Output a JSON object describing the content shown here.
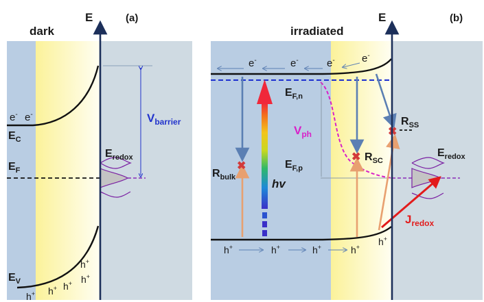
{
  "panel_a": {
    "title": "dark",
    "tag": "(a)",
    "axis_label": "E",
    "electrons": [
      "e",
      "e"
    ],
    "electron_sup": "-",
    "ec_main": "E",
    "ec_sub": "C",
    "ef_main": "E",
    "ef_sub": "F",
    "ev_main": "E",
    "ev_sub": "V",
    "holes": [
      "h",
      "h",
      "h",
      "h",
      "h"
    ],
    "hole_sup": "+",
    "vbarrier_main": "V",
    "vbarrier_sub": "barrier",
    "eredox_main": "E",
    "eredox_sub": "redox"
  },
  "panel_b": {
    "title": "irradiated",
    "tag": "(b)",
    "axis_label": "E",
    "electrons": [
      "e",
      "e",
      "e",
      "e"
    ],
    "electron_sup": "-",
    "efn_main": "E",
    "efn_sub": "F,n",
    "efp_main": "E",
    "efp_sub": "F,p",
    "vph_main": "V",
    "vph_sub": "ph",
    "hv": "hv",
    "rbulk_main": "R",
    "rbulk_sub": "bulk",
    "rsc_main": "R",
    "rsc_sub": "SC",
    "rss_main": "R",
    "rss_sub": "SS",
    "eredox_main": "E",
    "eredox_sub": "redox",
    "jredox_main": "J",
    "jredox_sub": "redox",
    "holes": [
      "h",
      "h",
      "h",
      "h",
      "h"
    ],
    "hole_sup": "+"
  },
  "colors": {
    "bulk": "#b9cde3",
    "electrolyte": "#cfdae2",
    "space_charge": "#fdf7b8",
    "fermi_dashed": "#1d2fd0",
    "vbarrier": "#2233cc",
    "vph": "#d820c8",
    "recombination_arrow": "#5b7fb3",
    "hole_arrow": "#e8a070",
    "jredox": "#e21b1b",
    "redox_curve": "#7a1fa2",
    "axis": "#1c2f5a"
  }
}
